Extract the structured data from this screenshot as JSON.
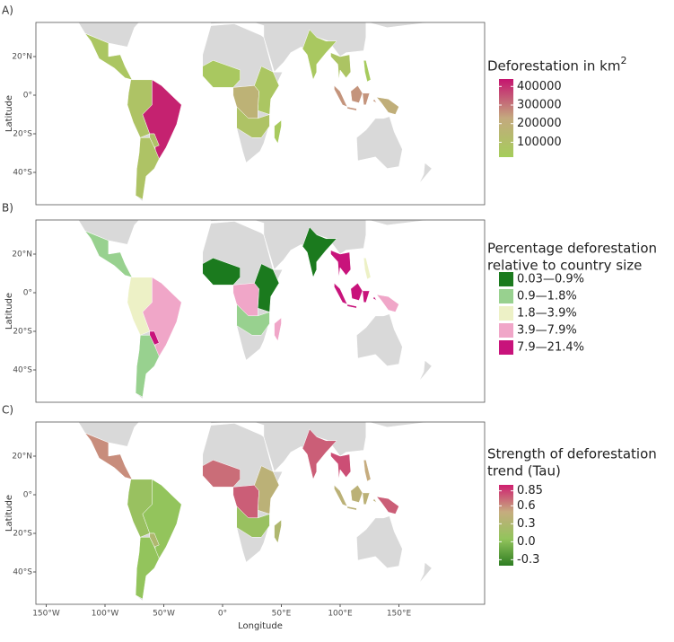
{
  "figure": {
    "x_axis": {
      "label": "Longitude",
      "ticks": [
        {
          "value": -150,
          "label": "150°W"
        },
        {
          "value": -100,
          "label": "100°W"
        },
        {
          "value": -50,
          "label": "50°W"
        },
        {
          "value": 0,
          "label": "0°"
        },
        {
          "value": 50,
          "label": "50°E"
        },
        {
          "value": 100,
          "label": "100°E"
        },
        {
          "value": 150,
          "label": "150°E"
        }
      ]
    },
    "y_axis": {
      "label": "Latitude",
      "ticks": [
        {
          "value": 20,
          "label": "20°N"
        },
        {
          "value": 0,
          "label": "0°"
        },
        {
          "value": -20,
          "label": "20°S"
        },
        {
          "value": -40,
          "label": "40°S"
        }
      ]
    },
    "panels": [
      {
        "label": "A)",
        "scale": "continuous",
        "legend": {
          "title": "Deforestation in km",
          "title_superscript": "2",
          "lim": [
            20000,
            440000
          ],
          "ticks": [
            400000,
            300000,
            200000,
            100000
          ],
          "colors": [
            "#a5cd5b",
            "#c4a97e",
            "#c5146f"
          ]
        },
        "values": [
          60000,
          30000,
          80000,
          420000,
          90000,
          80000,
          50000,
          180000,
          60000,
          80000,
          40000,
          50000,
          70000,
          260000,
          30000,
          200000
        ]
      },
      {
        "label": "B)",
        "scale": "binned",
        "legend": {
          "title_lines": [
            "Percentage deforestation",
            "relative to country size"
          ],
          "bins": [
            0.03,
            0.9,
            1.8,
            3.9,
            7.9,
            21.4
          ],
          "labels": [
            "0.03—0.9%",
            "0.9—1.8%",
            "1.8—3.9%",
            "3.9—7.9%",
            "7.9—21.4%"
          ],
          "colors": [
            "#1b7a1e",
            "#98d18f",
            "#edf1c6",
            "#f0a6c8",
            "#c8137b"
          ]
        },
        "values": [
          1.2,
          0.5,
          2.5,
          5,
          15,
          1.2,
          0.6,
          5,
          0.5,
          1.2,
          5,
          0.5,
          10,
          10,
          2.5,
          5
        ]
      },
      {
        "label": "C)",
        "scale": "continuous",
        "legend": {
          "title_lines": [
            "Strength of deforestation",
            "trend (Tau)"
          ],
          "lim": [
            -0.4,
            0.95
          ],
          "ticks": [
            0.85,
            0.6,
            0.3,
            {
              "value": 0,
              "label": "0.0"
            },
            -0.3
          ],
          "colors": [
            "#2e7d22",
            "#93c45c",
            "#c6ac7f",
            "#cf1f70"
          ]
        },
        "values": [
          0.6,
          0.5,
          0.1,
          0.05,
          0.3,
          0.05,
          0.7,
          0.75,
          0.4,
          0.1,
          0.3,
          0.75,
          0.8,
          0.4,
          0.5,
          0.75
        ]
      }
    ]
  }
}
